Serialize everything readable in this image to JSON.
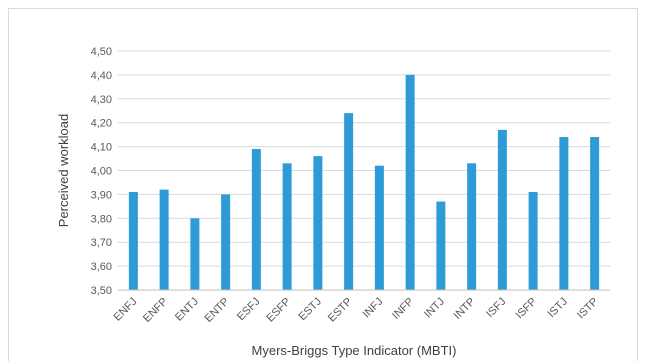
{
  "chart_data": {
    "type": "bar",
    "title": "",
    "xlabel": "Myers-Briggs Type Indicator (MBTI)",
    "ylabel": "Perceived workload",
    "categories": [
      "ENFJ",
      "ENFP",
      "ENTJ",
      "ENTP",
      "ESFJ",
      "ESFP",
      "ESTJ",
      "ESTP",
      "INFJ",
      "INFP",
      "INTJ",
      "INTP",
      "ISFJ",
      "ISFP",
      "ISTJ",
      "ISTP"
    ],
    "values": [
      3.91,
      3.92,
      3.8,
      3.9,
      4.09,
      4.03,
      4.06,
      4.24,
      4.02,
      4.4,
      3.87,
      4.03,
      4.17,
      3.91,
      4.14,
      4.14
    ],
    "ylim": [
      3.5,
      4.5
    ],
    "yticks": [
      "3,50",
      "3,60",
      "3,70",
      "3,80",
      "3,90",
      "4,00",
      "4,10",
      "4,20",
      "4,30",
      "4,40",
      "4,50"
    ],
    "grid": true,
    "legend": "none",
    "bar_color": "#2e9bd6",
    "grid_color": "#d9d9d9"
  }
}
